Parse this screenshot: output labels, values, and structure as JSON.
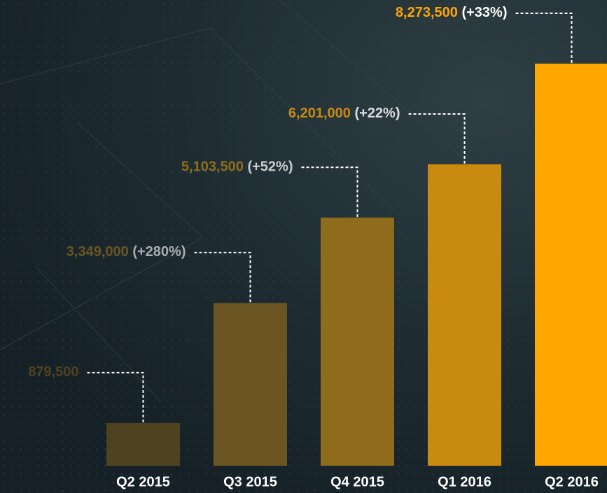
{
  "chart_data": {
    "type": "bar",
    "categories": [
      "Q2 2015",
      "Q3 2015",
      "Q4 2015",
      "Q1 2016",
      "Q2 2016"
    ],
    "values": [
      879500,
      3349000,
      5103500,
      6201000,
      8273500
    ],
    "value_labels": [
      "879,500",
      "3,349,000",
      "5,103,500",
      "6,201,000",
      "8,273,500"
    ],
    "changes": [
      null,
      "(+280%)",
      "(+52%)",
      "(+22%)",
      "(+33%)"
    ],
    "colors": [
      "#4e4220",
      "#6b5523",
      "#8f6c1b",
      "#c98a10",
      "#ffa600"
    ]
  }
}
